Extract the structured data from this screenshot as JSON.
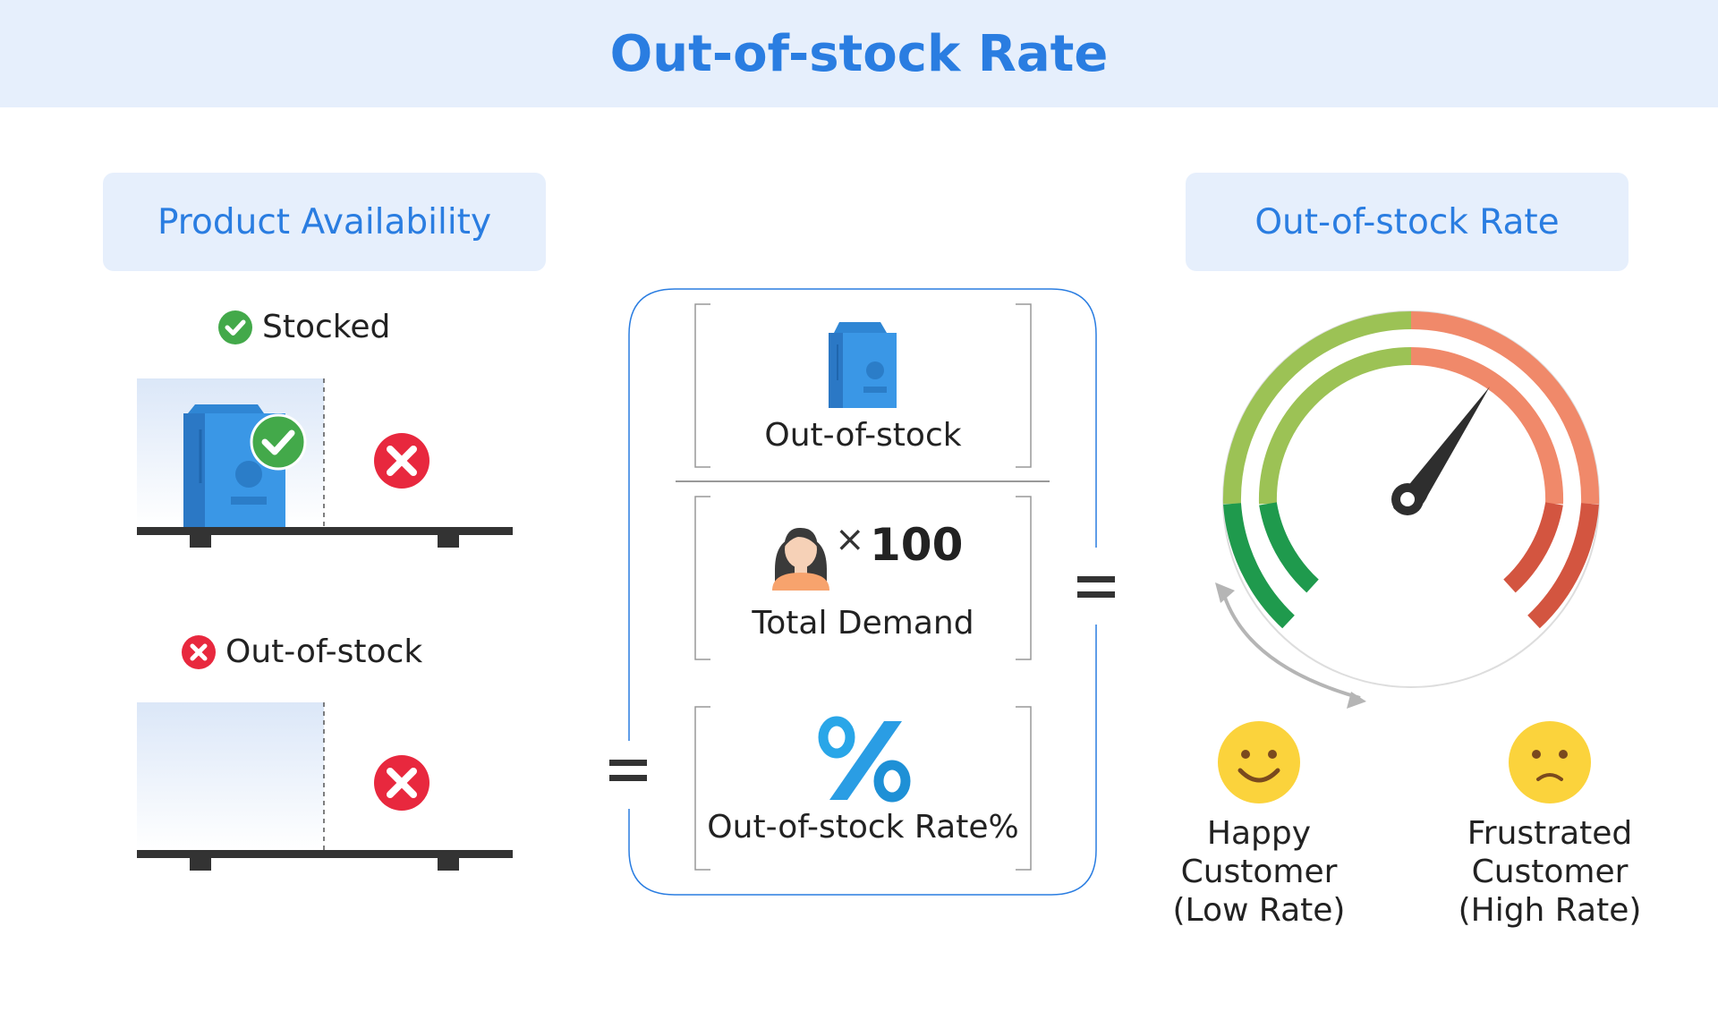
{
  "title": "Out-of-stock Rate",
  "left_panel": {
    "heading": "Product Availability",
    "stocked_label": "Stocked",
    "out_of_stock_label": "Out-of-stock"
  },
  "formula": {
    "numerator_label": "Out-of-stock",
    "multiplier": "100",
    "times_symbol": "×",
    "denominator_label": "Total Demand",
    "percent_symbol": "%",
    "result_label": "Out-of-stock Rate%",
    "equals_symbol": "="
  },
  "right_panel": {
    "heading": "Out-of-stock Rate",
    "happy_lines": [
      "Happy",
      "Customer",
      "(Low Rate)"
    ],
    "frustrated_lines": [
      "Frustrated",
      "Customer",
      "(High Rate)"
    ]
  },
  "colors": {
    "accent_blue": "#2a7de1",
    "header_bg": "#e6effc",
    "check_green": "#43a94a",
    "cross_red": "#e8283e",
    "gauge_light_green": "#9cc255",
    "gauge_dark_green": "#1f9a4d",
    "gauge_light_red": "#f0896a",
    "gauge_dark_red": "#d35540"
  }
}
